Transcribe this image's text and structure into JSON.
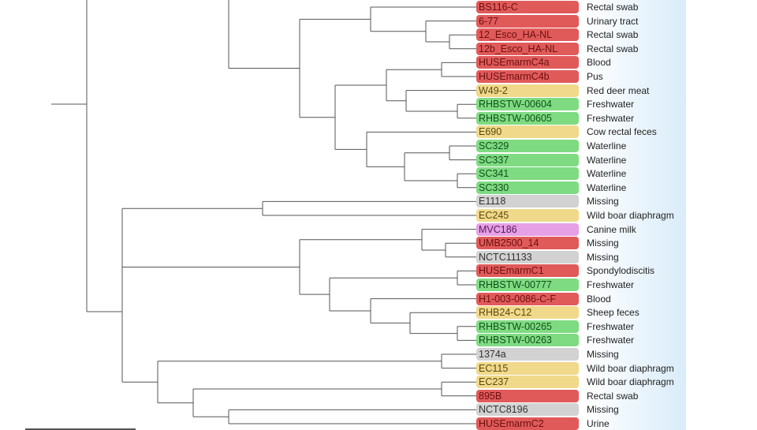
{
  "tree": {
    "leaves": [
      {
        "label": "BS116-C",
        "source": "Rectal swab",
        "color": "red"
      },
      {
        "label": "6-77",
        "source": "Urinary tract",
        "color": "red"
      },
      {
        "label": "12_Esco_HA-NL",
        "source": "Rectal swab",
        "color": "red"
      },
      {
        "label": "12b_Esco_HA-NL",
        "source": "Rectal swab",
        "color": "red"
      },
      {
        "label": "HUSEmarmC4a",
        "source": "Blood",
        "color": "red"
      },
      {
        "label": "HUSEmarmC4b",
        "source": "Pus",
        "color": "red"
      },
      {
        "label": "W49-2",
        "source": "Red deer meat",
        "color": "yellow"
      },
      {
        "label": "RHBSTW-00604",
        "source": "Freshwater",
        "color": "green"
      },
      {
        "label": "RHBSTW-00605",
        "source": "Freshwater",
        "color": "green"
      },
      {
        "label": "E690",
        "source": "Cow rectal feces",
        "color": "yellow"
      },
      {
        "label": "SC329",
        "source": "Waterline",
        "color": "green"
      },
      {
        "label": "SC337",
        "source": "Waterline",
        "color": "green"
      },
      {
        "label": "SC341",
        "source": "Waterline",
        "color": "green"
      },
      {
        "label": "SC330",
        "source": "Waterline",
        "color": "green"
      },
      {
        "label": "E1118",
        "source": "Missing",
        "color": "gray"
      },
      {
        "label": "EC245",
        "source": "Wild boar diaphragm",
        "color": "yellow"
      },
      {
        "label": "MVC186",
        "source": "Canine milk",
        "color": "pink"
      },
      {
        "label": "UMB2500_14",
        "source": "Missing",
        "color": "red"
      },
      {
        "label": "NCTC11133",
        "source": "Missing",
        "color": "gray"
      },
      {
        "label": "HUSEmarmC1",
        "source": "Spondylodiscitis",
        "color": "red"
      },
      {
        "label": "RHBSTW-00777",
        "source": "Freshwater",
        "color": "green"
      },
      {
        "label": "H1-003-0086-C-F",
        "source": "Blood",
        "color": "red"
      },
      {
        "label": "RHB24-C12",
        "source": "Sheep feces",
        "color": "yellow"
      },
      {
        "label": "RHBSTW-00265",
        "source": "Freshwater",
        "color": "green"
      },
      {
        "label": "RHBSTW-00263",
        "source": "Freshwater",
        "color": "green"
      },
      {
        "label": "1374a",
        "source": "Missing",
        "color": "gray"
      },
      {
        "label": "EC115",
        "source": "Wild boar diaphragm",
        "color": "yellow"
      },
      {
        "label": "EC237",
        "source": "Wild boar diaphragm",
        "color": "yellow"
      },
      {
        "label": "895B",
        "source": "Rectal swab",
        "color": "red"
      },
      {
        "label": "NCTC8196",
        "source": "Missing",
        "color": "gray"
      },
      {
        "label": "HUSEmarmC2",
        "source": "Urine",
        "color": "red"
      }
    ]
  },
  "colors": {
    "red": "#e15a5a",
    "yellow": "#f0d98a",
    "green": "#7fdb82",
    "gray": "#d2d2d2",
    "pink": "#e6a0e6",
    "branch": "#555555"
  }
}
